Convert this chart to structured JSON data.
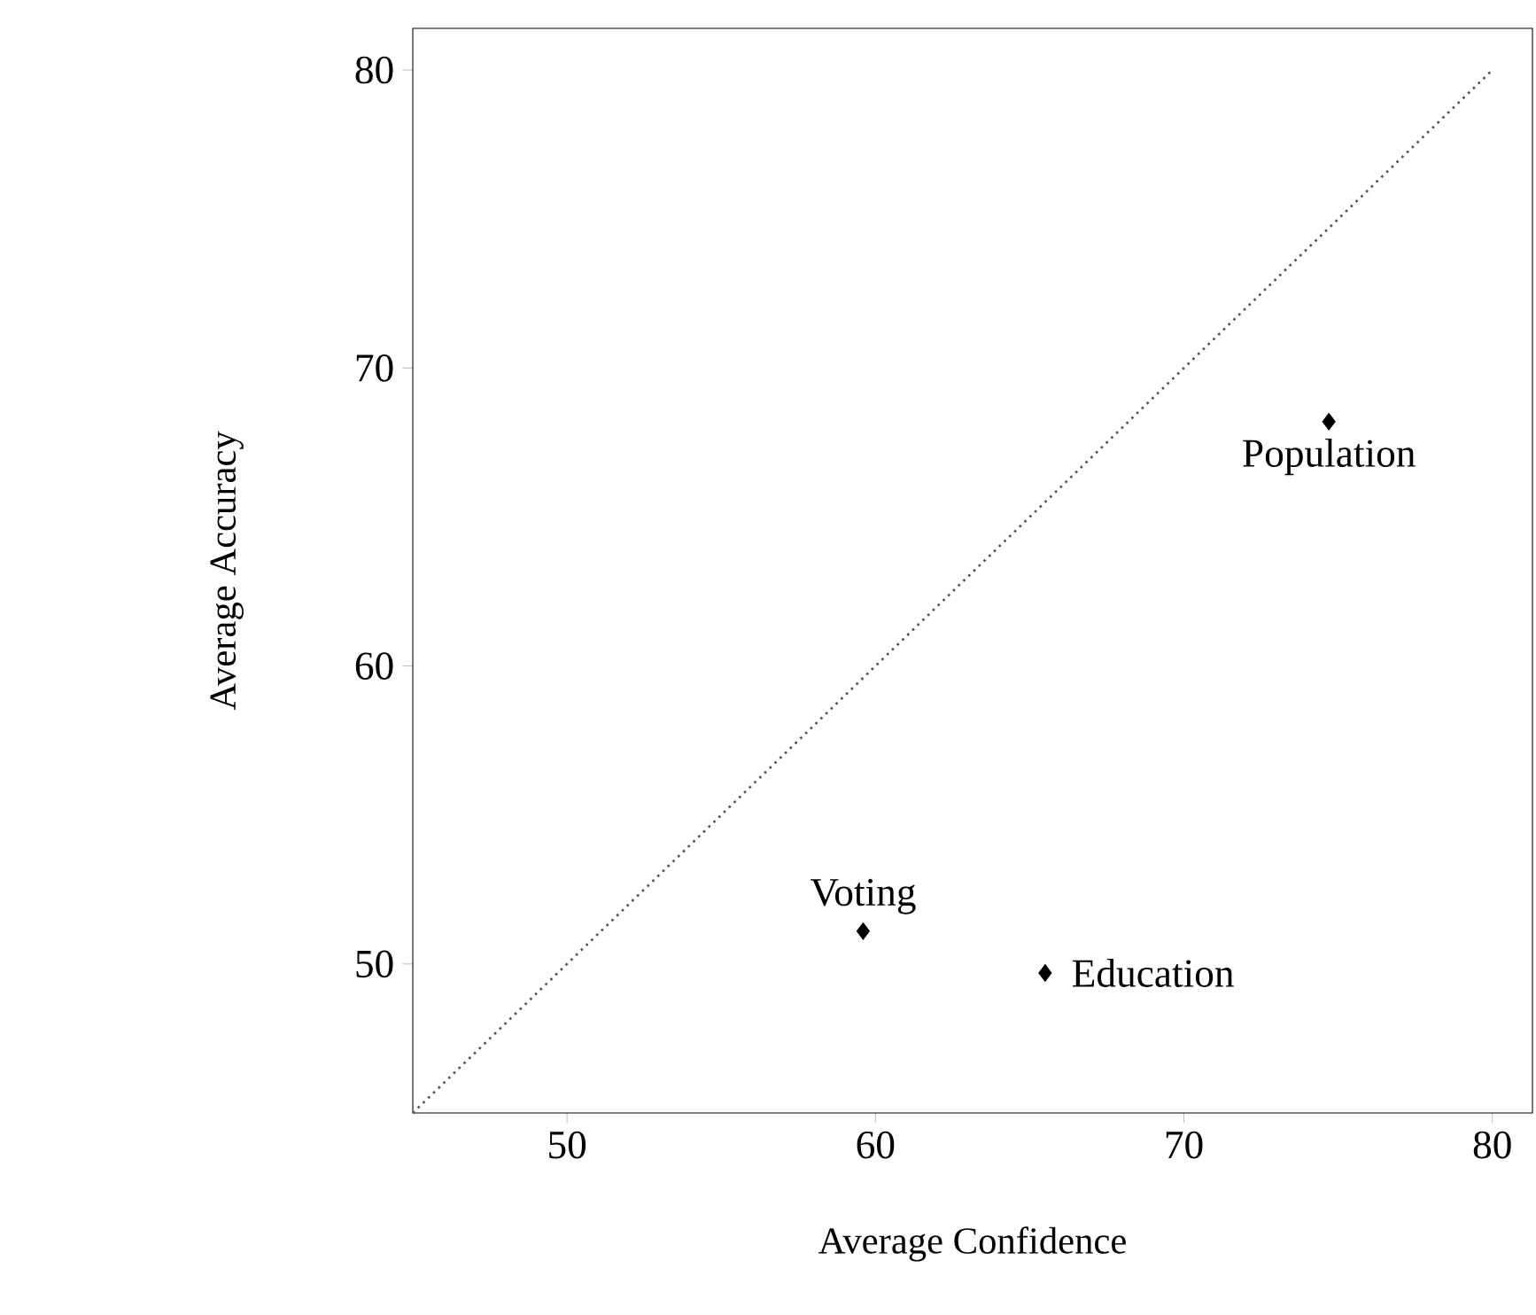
{
  "chart_data": {
    "type": "scatter",
    "xlabel": "Average Confidence",
    "ylabel": "Average Accuracy",
    "xlim": [
      45,
      81.3
    ],
    "ylim": [
      45,
      81.4
    ],
    "xticks": [
      50,
      60,
      70,
      80
    ],
    "yticks": [
      50,
      60,
      70,
      80
    ],
    "marker": "diamond",
    "series": [
      {
        "color": "#000000",
        "x": [
          74.7,
          59.6,
          65.5
        ],
        "values": [
          68.2,
          51.1,
          49.7
        ]
      },
      {
        "type": "line",
        "color": "#555555",
        "line_style": "dotted",
        "marker": "none",
        "x": [
          45,
          80
        ],
        "values": [
          45,
          80
        ]
      }
    ],
    "annotations": [
      {
        "text": "Population",
        "x": 74.7,
        "y": 68.2
      },
      {
        "text": "Voting",
        "x": 59.6,
        "y": 51.1
      },
      {
        "text": "Education",
        "x": 65.5,
        "y": 49.7
      }
    ]
  }
}
